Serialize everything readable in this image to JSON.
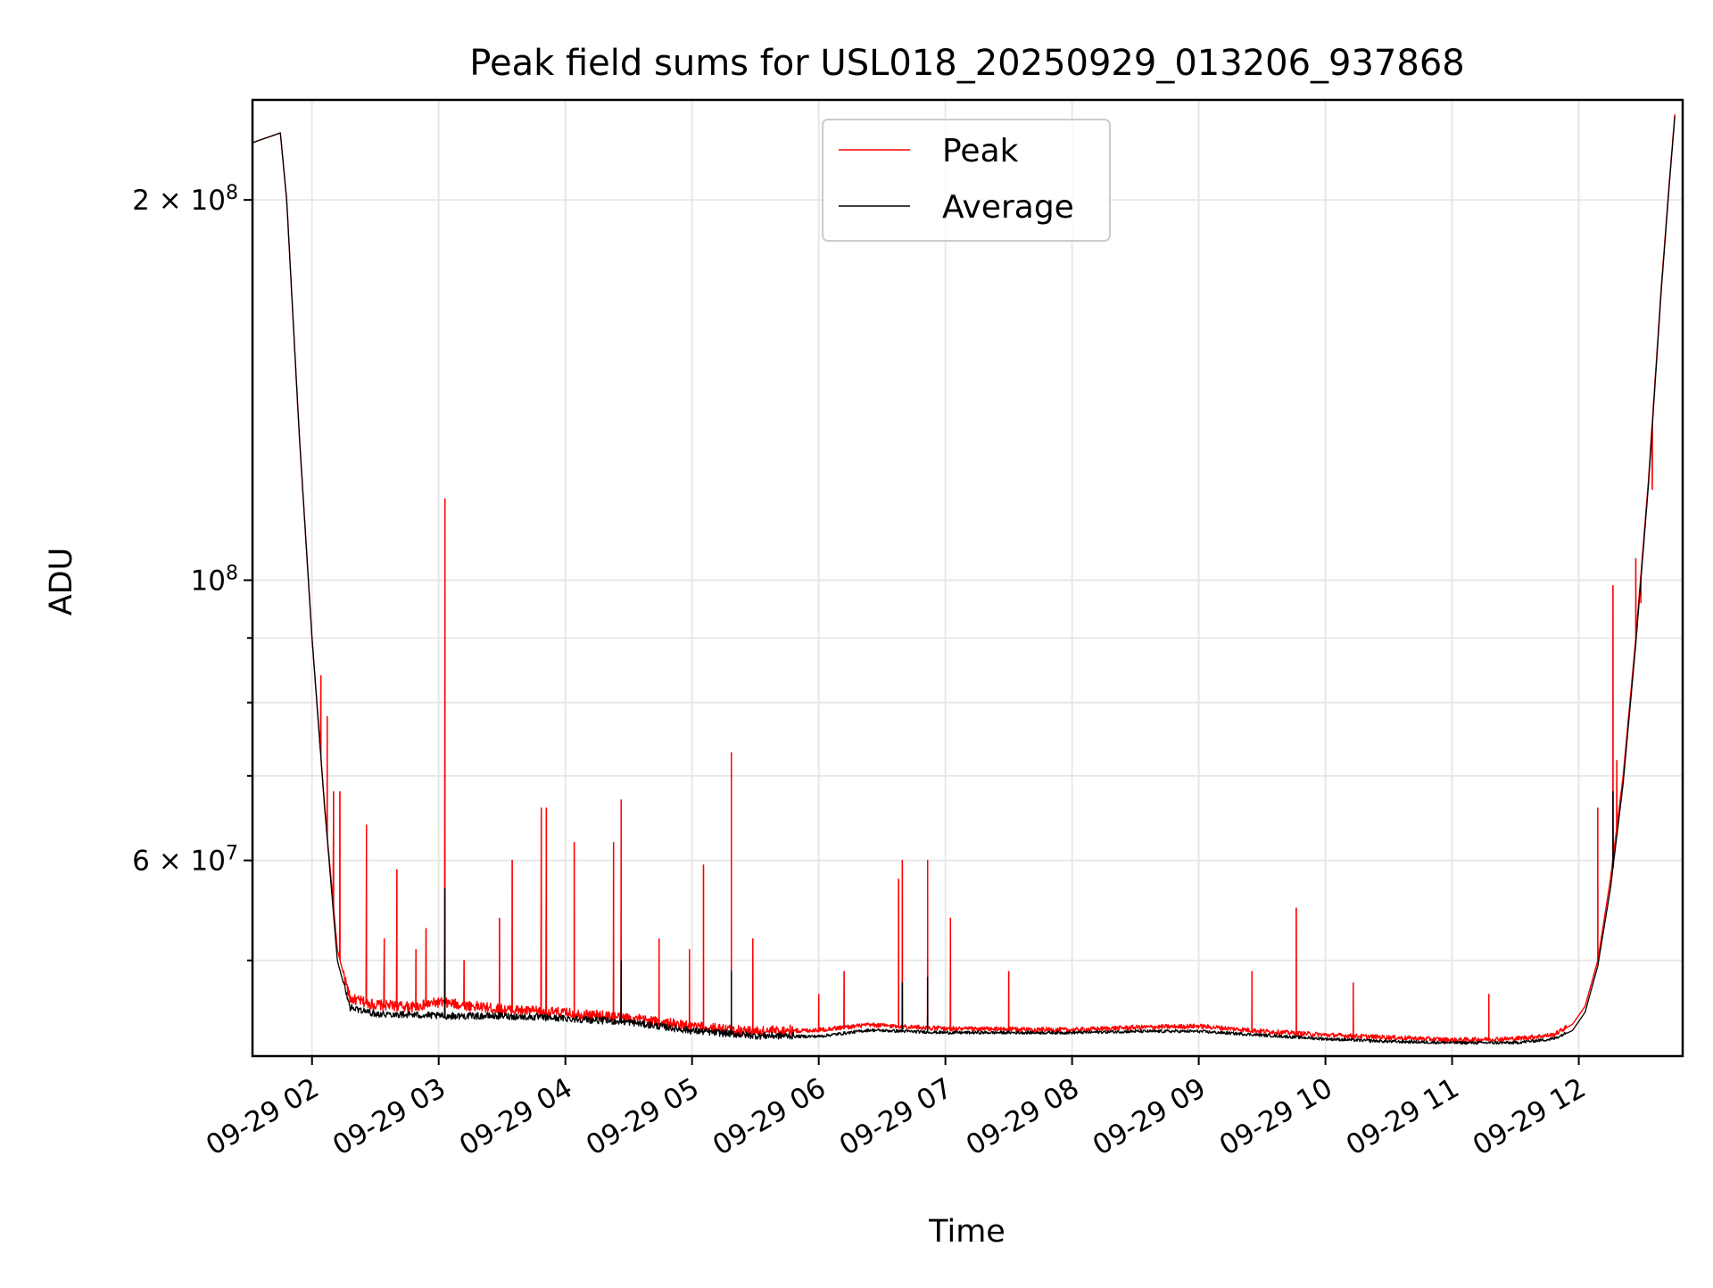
{
  "chart_data": {
    "type": "line",
    "title": "Peak field sums for USL018_20250929_013206_937868",
    "xlabel": "Time",
    "ylabel": "ADU",
    "yscale": "log",
    "xlim": [
      1.53,
      12.82
    ],
    "ylim": [
      42000000,
      240000000
    ],
    "grid": true,
    "legend_position": "upper-center",
    "x_ticks": [
      {
        "value": 2,
        "label": "09-29 02"
      },
      {
        "value": 3,
        "label": "09-29 03"
      },
      {
        "value": 4,
        "label": "09-29 04"
      },
      {
        "value": 5,
        "label": "09-29 05"
      },
      {
        "value": 6,
        "label": "09-29 06"
      },
      {
        "value": 7,
        "label": "09-29 07"
      },
      {
        "value": 8,
        "label": "09-29 08"
      },
      {
        "value": 9,
        "label": "09-29 09"
      },
      {
        "value": 10,
        "label": "09-29 10"
      },
      {
        "value": 11,
        "label": "09-29 11"
      },
      {
        "value": 12,
        "label": "09-29 12"
      }
    ],
    "y_major_ticks": [
      {
        "value": 200000000,
        "mantissa": "2",
        "exponent": "8"
      },
      {
        "value": 100000000,
        "mantissa": "",
        "exponent": "8"
      },
      {
        "value": 60000000,
        "mantissa": "6",
        "exponent": "7"
      }
    ],
    "y_minor_ticks": [
      50000000,
      70000000,
      80000000,
      90000000
    ],
    "series": [
      {
        "name": "Peak",
        "color": "#ff0000",
        "points": [
          [
            1.53,
            222000000
          ],
          [
            1.75,
            226000000
          ],
          [
            1.8,
            200000000
          ],
          [
            1.9,
            130000000
          ],
          [
            2.0,
            90000000
          ],
          [
            2.1,
            66000000
          ],
          [
            2.2,
            51000000
          ],
          [
            2.3,
            46500000
          ],
          [
            2.5,
            46000000
          ],
          [
            2.8,
            45800000
          ],
          [
            3.0,
            46200000
          ],
          [
            3.5,
            45600000
          ],
          [
            4.0,
            45300000
          ],
          [
            4.5,
            44900000
          ],
          [
            5.0,
            44200000
          ],
          [
            5.5,
            43800000
          ],
          [
            6.0,
            44000000
          ],
          [
            6.4,
            44400000
          ],
          [
            7.0,
            44100000
          ],
          [
            8.0,
            44000000
          ],
          [
            8.5,
            44200000
          ],
          [
            9.0,
            44300000
          ],
          [
            9.5,
            43900000
          ],
          [
            10.0,
            43600000
          ],
          [
            10.5,
            43400000
          ],
          [
            11.0,
            43200000
          ],
          [
            11.5,
            43300000
          ],
          [
            11.8,
            43600000
          ],
          [
            11.95,
            44500000
          ],
          [
            12.05,
            46000000
          ],
          [
            12.15,
            50000000
          ],
          [
            12.25,
            58000000
          ],
          [
            12.35,
            70000000
          ],
          [
            12.45,
            90000000
          ],
          [
            12.55,
            120000000
          ],
          [
            12.65,
            170000000
          ],
          [
            12.72,
            210000000
          ],
          [
            12.76,
            235000000
          ]
        ],
        "spikes": [
          [
            2.07,
            84000000
          ],
          [
            2.12,
            78000000
          ],
          [
            2.17,
            68000000
          ],
          [
            2.22,
            68000000
          ],
          [
            2.43,
            64000000
          ],
          [
            2.57,
            52000000
          ],
          [
            2.67,
            59000000
          ],
          [
            2.82,
            51000000
          ],
          [
            2.9,
            53000000
          ],
          [
            3.05,
            116000000
          ],
          [
            3.2,
            50000000
          ],
          [
            3.48,
            54000000
          ],
          [
            3.58,
            60000000
          ],
          [
            3.81,
            66000000
          ],
          [
            3.85,
            66000000
          ],
          [
            4.07,
            62000000
          ],
          [
            4.38,
            62000000
          ],
          [
            4.44,
            67000000
          ],
          [
            4.74,
            52000000
          ],
          [
            4.98,
            51000000
          ],
          [
            5.09,
            59500000
          ],
          [
            5.31,
            73000000
          ],
          [
            5.48,
            52000000
          ],
          [
            6.0,
            47000000
          ],
          [
            6.2,
            49000000
          ],
          [
            6.63,
            58000000
          ],
          [
            6.66,
            60000000
          ],
          [
            6.86,
            60000000
          ],
          [
            7.04,
            54000000
          ],
          [
            7.5,
            49000000
          ],
          [
            9.42,
            49000000
          ],
          [
            9.77,
            55000000
          ],
          [
            10.22,
            48000000
          ],
          [
            11.29,
            47000000
          ],
          [
            12.15,
            66000000
          ],
          [
            12.27,
            99000000
          ],
          [
            12.3,
            72000000
          ],
          [
            12.45,
            104000000
          ],
          [
            12.49,
            96000000
          ],
          [
            12.58,
            118000000
          ]
        ]
      },
      {
        "name": "Average",
        "color": "#000000",
        "points": [
          [
            1.53,
            222000000
          ],
          [
            1.75,
            226000000
          ],
          [
            1.8,
            200000000
          ],
          [
            1.9,
            130000000
          ],
          [
            2.0,
            90000000
          ],
          [
            2.1,
            66000000
          ],
          [
            2.2,
            50000000
          ],
          [
            2.3,
            45800000
          ],
          [
            2.5,
            45300000
          ],
          [
            2.8,
            45200000
          ],
          [
            3.0,
            45100000
          ],
          [
            3.5,
            45100000
          ],
          [
            4.0,
            44900000
          ],
          [
            4.5,
            44600000
          ],
          [
            5.0,
            43900000
          ],
          [
            5.5,
            43500000
          ],
          [
            6.0,
            43500000
          ],
          [
            6.4,
            44000000
          ],
          [
            7.0,
            43800000
          ],
          [
            8.0,
            43800000
          ],
          [
            8.5,
            43900000
          ],
          [
            9.0,
            43900000
          ],
          [
            9.5,
            43600000
          ],
          [
            10.0,
            43300000
          ],
          [
            10.5,
            43100000
          ],
          [
            11.0,
            43000000
          ],
          [
            11.5,
            43000000
          ],
          [
            11.8,
            43300000
          ],
          [
            11.95,
            44000000
          ],
          [
            12.05,
            45500000
          ],
          [
            12.15,
            49500000
          ],
          [
            12.25,
            57000000
          ],
          [
            12.35,
            69000000
          ],
          [
            12.45,
            89000000
          ],
          [
            12.55,
            119000000
          ],
          [
            12.65,
            169000000
          ],
          [
            12.72,
            209000000
          ],
          [
            12.76,
            234000000
          ]
        ],
        "spikes": [
          [
            3.05,
            57000000
          ],
          [
            4.44,
            50000000
          ],
          [
            5.31,
            49000000
          ],
          [
            6.66,
            48000000
          ],
          [
            6.86,
            48500000
          ],
          [
            12.27,
            68000000
          ]
        ]
      }
    ]
  }
}
